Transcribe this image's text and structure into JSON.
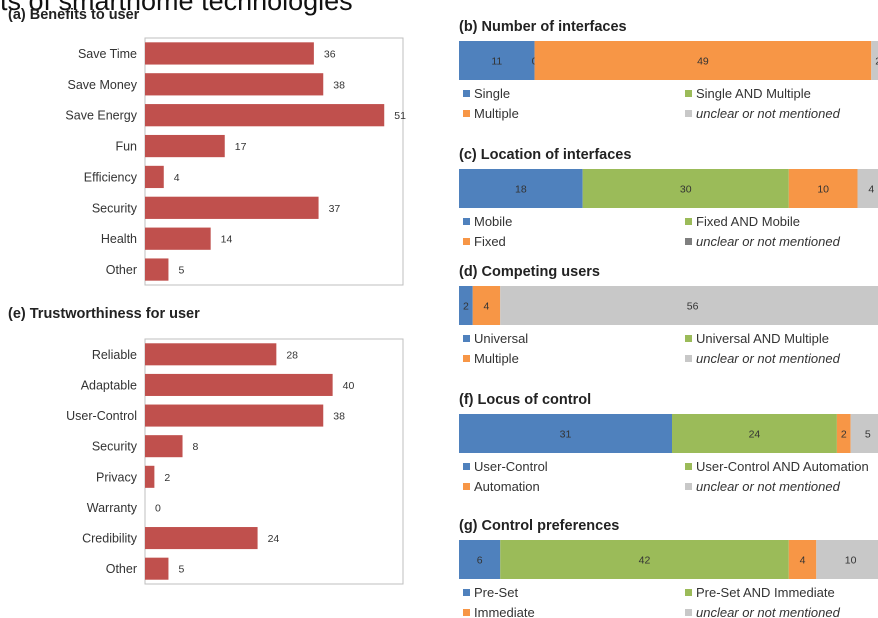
{
  "page_title": "ts of smarthome technologies",
  "colors": {
    "bar": "#C0504D",
    "blue": "#4F81BD",
    "green": "#9BBB59",
    "orange": "#F79646",
    "gray": "#C8C8C8",
    "darkgray": "#7F7F7F"
  },
  "chart_data": [
    {
      "id": "a",
      "type": "bar",
      "orientation": "horizontal",
      "title": "(a) Benefits to user",
      "categories": [
        "Save Time",
        "Save Money",
        "Save Energy",
        "Fun",
        "Efficiency",
        "Security",
        "Health",
        "Other"
      ],
      "values": [
        36,
        38,
        51,
        17,
        4,
        37,
        14,
        5
      ],
      "xlim": [
        0,
        55
      ],
      "grid": false
    },
    {
      "id": "e",
      "type": "bar",
      "orientation": "horizontal",
      "title": "(e) Trustworthiness for user",
      "categories": [
        "Reliable",
        "Adaptable",
        "User-Control",
        "Security",
        "Privacy",
        "Warranty",
        "Credibility",
        "Other"
      ],
      "values": [
        28,
        40,
        38,
        8,
        2,
        0,
        24,
        5
      ],
      "xlim": [
        0,
        55
      ],
      "grid": false
    },
    {
      "id": "b",
      "type": "bar",
      "orientation": "horizontal",
      "stacked": true,
      "title": "(b) Number of interfaces",
      "series": [
        {
          "name": "Single",
          "value": 11,
          "label": "11",
          "color": "blue"
        },
        {
          "name": "Single AND Multiple",
          "value": 0,
          "label": "0",
          "color": "green"
        },
        {
          "name": "Multiple",
          "value": 49,
          "label": "49",
          "color": "orange"
        },
        {
          "name": "unclear or not mentioned",
          "value": 2,
          "label": "2",
          "color": "gray",
          "italic": true
        }
      ],
      "total": 62
    },
    {
      "id": "c",
      "type": "bar",
      "orientation": "horizontal",
      "stacked": true,
      "title": "(c) Location of interfaces",
      "series": [
        {
          "name": "Mobile",
          "value": 18,
          "label": "18",
          "color": "blue"
        },
        {
          "name": "Fixed AND Mobile",
          "value": 30,
          "label": "30",
          "color": "green"
        },
        {
          "name": "Fixed",
          "value": 10,
          "label": "10",
          "color": "orange"
        },
        {
          "name": "unclear or not mentioned",
          "value": 4,
          "label": "4",
          "color": "gray",
          "legend_color": "darkgray",
          "italic": true
        }
      ],
      "total": 62
    },
    {
      "id": "d",
      "type": "bar",
      "orientation": "horizontal",
      "stacked": true,
      "title": "(d) Competing users",
      "series": [
        {
          "name": "Universal",
          "value": 2,
          "label": "2",
          "color": "blue"
        },
        {
          "name": "Universal AND Multiple",
          "value": 0,
          "label": "",
          "color": "green"
        },
        {
          "name": "Multiple",
          "value": 4,
          "label": "4",
          "color": "orange"
        },
        {
          "name": "unclear or not mentioned",
          "value": 56,
          "label": "56",
          "color": "gray",
          "italic": true
        }
      ],
      "total": 62
    },
    {
      "id": "f",
      "type": "bar",
      "orientation": "horizontal",
      "stacked": true,
      "title": "(f) Locus of control",
      "series": [
        {
          "name": "User-Control",
          "value": 31,
          "label": "31",
          "color": "blue"
        },
        {
          "name": "User-Control AND Automation",
          "value": 24,
          "label": "24",
          "color": "green"
        },
        {
          "name": "Automation",
          "value": 2,
          "label": "2",
          "color": "orange"
        },
        {
          "name": "unclear or not mentioned",
          "value": 5,
          "label": "5",
          "color": "gray",
          "italic": true
        }
      ],
      "total": 62
    },
    {
      "id": "g",
      "type": "bar",
      "orientation": "horizontal",
      "stacked": true,
      "title": "(g) Control preferences",
      "series": [
        {
          "name": "Pre-Set",
          "value": 6,
          "label": "6",
          "color": "blue"
        },
        {
          "name": "Pre-Set AND Immediate",
          "value": 42,
          "label": "42",
          "color": "green"
        },
        {
          "name": "Immediate",
          "value": 4,
          "label": "4",
          "color": "orange"
        },
        {
          "name": "unclear or not mentioned",
          "value": 10,
          "label": "10",
          "color": "gray",
          "italic": true
        }
      ],
      "total": 62
    }
  ]
}
